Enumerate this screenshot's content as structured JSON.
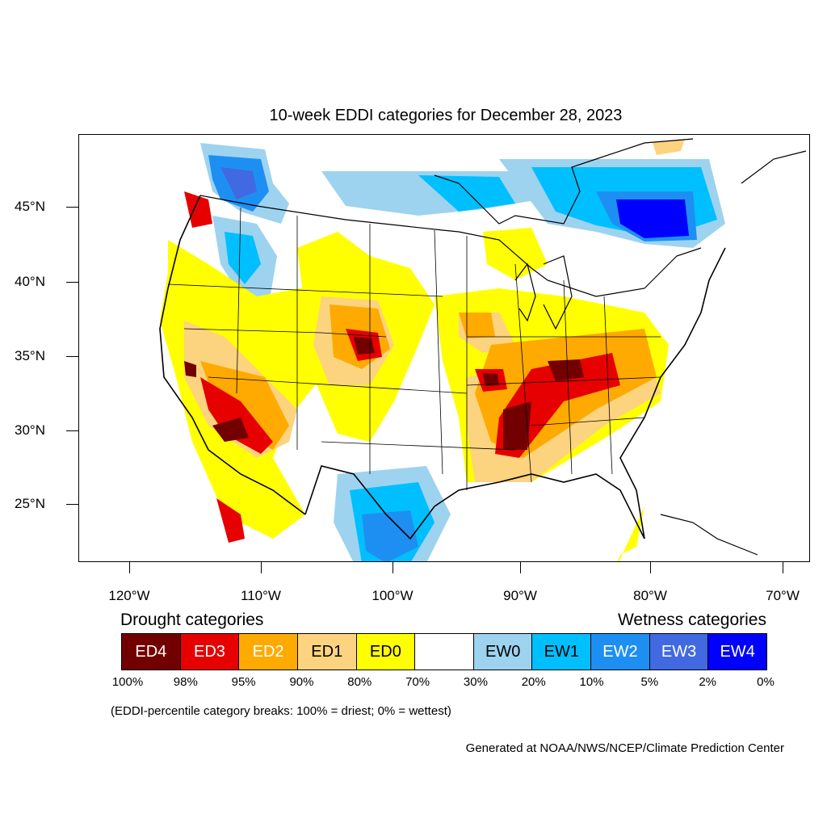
{
  "title": "10-week EDDI categories for December 28, 2023",
  "lat_labels": [
    "45°N",
    "40°N",
    "35°N",
    "30°N",
    "25°N"
  ],
  "lon_labels": [
    "120°W",
    "110°W",
    "100°W",
    "90°W",
    "80°W",
    "70°W"
  ],
  "legend": {
    "drought_heading": "Drought categories",
    "wetness_heading": "Wetness categories",
    "categories": [
      {
        "label": "ED4",
        "color": "#730000",
        "text_color": "#ffffff"
      },
      {
        "label": "ED3",
        "color": "#e60000",
        "text_color": "#ffffff"
      },
      {
        "label": "ED2",
        "color": "#ffaa00",
        "text_color": "#ffffff"
      },
      {
        "label": "ED1",
        "color": "#fcd37f",
        "text_color": "#000000"
      },
      {
        "label": "ED0",
        "color": "#ffff00",
        "text_color": "#000000"
      },
      {
        "label": "",
        "color": "#ffffff",
        "text_color": "#000000"
      },
      {
        "label": "EW0",
        "color": "#9dd3ef",
        "text_color": "#000000"
      },
      {
        "label": "EW1",
        "color": "#00bfff",
        "text_color": "#000000"
      },
      {
        "label": "EW2",
        "color": "#1e8ff2",
        "text_color": "#ffffff"
      },
      {
        "label": "EW3",
        "color": "#4169e1",
        "text_color": "#ffffff"
      },
      {
        "label": "EW4",
        "color": "#0000ff",
        "text_color": "#ffffff"
      }
    ],
    "percent_breaks": [
      "100%",
      "98%",
      "95%",
      "90%",
      "80%",
      "70%",
      "30%",
      "20%",
      "10%",
      "5%",
      "2%",
      "0%"
    ]
  },
  "note": "(EDDI-percentile category breaks: 100% = driest; 0% = wettest)",
  "credit": "Generated at NOAA/NWS/NCEP/Climate Prediction Center"
}
